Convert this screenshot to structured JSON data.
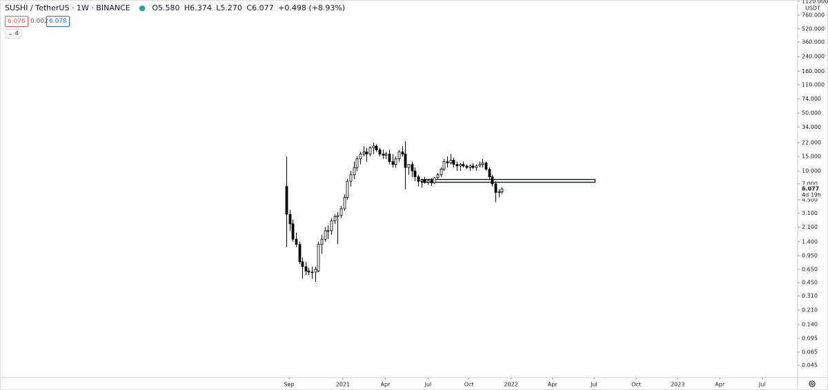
{
  "header": {
    "symbol": "SUSHI / TetherUS · 1W · BINANCE",
    "ohlc": [
      {
        "label": "O",
        "value": "5.580"
      },
      {
        "label": "H",
        "value": "6.374"
      },
      {
        "label": "L",
        "value": "5.270"
      },
      {
        "label": "C",
        "value": "6.077"
      }
    ],
    "change": "+0.498 (+8.93%)",
    "sell": "6.076",
    "spread": "0.002",
    "buy": "6.078",
    "indicators": "4"
  },
  "chart_data": {
    "type": "candlestick",
    "currency": "USDT",
    "countdown": "4d 19h",
    "log_scale": true,
    "up_color": "#ffffff",
    "down_color": "#000000",
    "edge_color": "#000000",
    "ylim": [
      0.032,
      1160
    ],
    "yticks": [
      {
        "value": 1120,
        "label": "1120.000"
      },
      {
        "value": 760,
        "label": "760.000"
      },
      {
        "value": 520,
        "label": "520.000"
      },
      {
        "value": 360,
        "label": "360.000"
      },
      {
        "value": 240,
        "label": "240.000"
      },
      {
        "value": 160,
        "label": "160.000"
      },
      {
        "value": 110,
        "label": "110.000"
      },
      {
        "value": 74,
        "label": "74.000"
      },
      {
        "value": 50,
        "label": "50.000"
      },
      {
        "value": 34,
        "label": "34.000"
      },
      {
        "value": 22,
        "label": "22.000"
      },
      {
        "value": 15,
        "label": "15.000"
      },
      {
        "value": 10,
        "label": "10.000"
      },
      {
        "value": 7,
        "label": "7.000"
      },
      {
        "value": 4.5,
        "label": "4.500"
      },
      {
        "value": 3.1,
        "label": "3.100"
      },
      {
        "value": 2.1,
        "label": "2.100"
      },
      {
        "value": 1.4,
        "label": "1.400"
      },
      {
        "value": 0.95,
        "label": "0.950"
      },
      {
        "value": 0.65,
        "label": "0.650"
      },
      {
        "value": 0.45,
        "label": "0.450"
      },
      {
        "value": 0.31,
        "label": "0.310"
      },
      {
        "value": 0.21,
        "label": "0.210"
      },
      {
        "value": 0.14,
        "label": "0.140"
      },
      {
        "value": 0.095,
        "label": "0.095"
      },
      {
        "value": 0.065,
        "label": "0.065"
      },
      {
        "value": 0.045,
        "label": "0.045"
      }
    ],
    "xlim": [
      -89,
      159
    ],
    "xticks": [
      {
        "value": 0.9,
        "label": "Sep"
      },
      {
        "value": 17.6,
        "label": "2021"
      },
      {
        "value": 30.8,
        "label": "Apr"
      },
      {
        "value": 44.1,
        "label": "Jul"
      },
      {
        "value": 56.8,
        "label": "Oct"
      },
      {
        "value": 69.9,
        "label": "2022"
      },
      {
        "value": 82.8,
        "label": "Apr"
      },
      {
        "value": 95.7,
        "label": "Jul"
      },
      {
        "value": 108.8,
        "label": "Oct"
      },
      {
        "value": 121.7,
        "label": "2023"
      },
      {
        "value": 134.8,
        "label": "Apr"
      },
      {
        "value": 148,
        "label": "Jul"
      }
    ],
    "candles": {
      "open": [
        6.5,
        3.0,
        2.3,
        1.5,
        1.3,
        0.8,
        0.7,
        0.62,
        0.6,
        0.6,
        0.62,
        1.3,
        1.5,
        1.9,
        1.9,
        2.5,
        2.8,
        2.9,
        3.5,
        4.8,
        7.5,
        9,
        11,
        14,
        16,
        17,
        16,
        19,
        20,
        18,
        16,
        15.5,
        16,
        13,
        12,
        14,
        17,
        16,
        11,
        12,
        10,
        8.5,
        7.5,
        7.8,
        7.3,
        7.7,
        7.2,
        8.3,
        9,
        10.5,
        13,
        12.5,
        13.5,
        12,
        11.5,
        12,
        11.5,
        11,
        11.5,
        11,
        11.5,
        12,
        12.5,
        10.5,
        8.5,
        7,
        5.5,
        5.58
      ],
      "high": [
        15,
        3.4,
        2.6,
        1.8,
        1.4,
        0.9,
        0.8,
        0.68,
        0.7,
        0.7,
        1.4,
        1.7,
        2.1,
        2.2,
        2.7,
        3.0,
        3.2,
        3.8,
        5.2,
        8,
        10,
        13,
        15,
        17,
        20,
        19,
        20,
        22,
        21,
        19,
        18,
        17,
        18,
        16,
        15,
        18,
        20,
        23,
        12,
        13,
        11,
        9,
        8,
        8.5,
        8,
        8.2,
        8.5,
        9.5,
        11,
        14,
        15,
        16,
        14.5,
        13,
        12.5,
        13,
        12,
        12,
        12.5,
        12,
        13,
        14,
        13,
        11,
        9,
        7.5,
        6,
        6.374
      ],
      "low": [
        1.2,
        1.9,
        1.4,
        1.2,
        0.75,
        0.5,
        0.55,
        0.55,
        0.5,
        0.46,
        0.6,
        1.0,
        1.4,
        1.5,
        1.7,
        2.3,
        1.3,
        2.7,
        3.3,
        4.5,
        6.5,
        8,
        10,
        12,
        15,
        13,
        15,
        16,
        17,
        15,
        14,
        14,
        12,
        11,
        11,
        13,
        15,
        6,
        9,
        8.5,
        7.5,
        6.5,
        6.3,
        7,
        6.8,
        6.6,
        7,
        7.8,
        8.5,
        10,
        11,
        12,
        11,
        10,
        10,
        11,
        10.5,
        10,
        10.5,
        10,
        11,
        11,
        10,
        8,
        6.5,
        4.2,
        4.8,
        5.27
      ],
      "close": [
        3.0,
        2.3,
        1.5,
        1.3,
        0.8,
        0.7,
        0.62,
        0.6,
        0.6,
        0.65,
        1.3,
        1.5,
        1.9,
        1.9,
        2.5,
        2.8,
        2.9,
        3.5,
        4.8,
        7.5,
        9,
        11,
        14,
        16,
        17,
        16,
        19,
        20,
        18,
        16,
        15.5,
        16,
        13,
        12,
        14,
        17,
        16,
        11,
        12,
        10,
        8.5,
        7.5,
        7.8,
        7.3,
        7.7,
        7.2,
        8.3,
        9,
        10.5,
        13,
        12.5,
        13.5,
        12,
        11.5,
        12,
        11.5,
        11,
        11.5,
        11,
        11.5,
        12,
        12.5,
        10.5,
        8.5,
        7,
        5.5,
        5.6,
        6.077
      ]
    },
    "zone": {
      "x": [
        42,
        96
      ],
      "y": [
        7.3,
        7.9
      ],
      "color": "#e0f2f1"
    }
  }
}
